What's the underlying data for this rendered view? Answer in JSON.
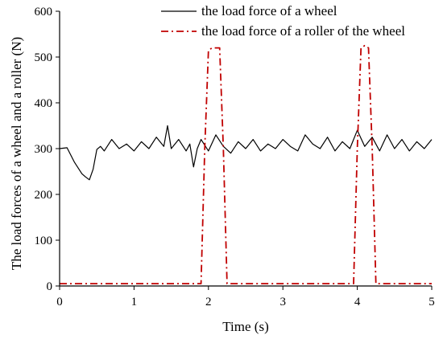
{
  "chart_data": {
    "type": "line",
    "xlabel": "Time (s)",
    "ylabel": "The load forces of a wheel and a roller (N)",
    "xlim": [
      0,
      5
    ],
    "ylim": [
      0,
      600
    ],
    "x_ticks": [
      "0",
      "1",
      "2",
      "3",
      "4",
      "5"
    ],
    "y_ticks": [
      "0",
      "100",
      "200",
      "300",
      "400",
      "500",
      "600"
    ],
    "grid": false,
    "legend_position": "top-right",
    "series": [
      {
        "name": "the load force of a wheel",
        "color": "#000000",
        "line_style": "solid",
        "x": [
          0,
          0.1,
          0.2,
          0.3,
          0.35,
          0.4,
          0.45,
          0.5,
          0.55,
          0.6,
          0.7,
          0.8,
          0.9,
          1.0,
          1.1,
          1.2,
          1.3,
          1.4,
          1.45,
          1.5,
          1.6,
          1.7,
          1.75,
          1.8,
          1.85,
          1.9,
          2.0,
          2.1,
          2.2,
          2.3,
          2.4,
          2.5,
          2.6,
          2.7,
          2.8,
          2.9,
          3.0,
          3.1,
          3.2,
          3.3,
          3.4,
          3.5,
          3.6,
          3.7,
          3.8,
          3.9,
          4.0,
          4.1,
          4.2,
          4.3,
          4.4,
          4.5,
          4.6,
          4.7,
          4.8,
          4.9,
          5.0
        ],
        "y": [
          300,
          302,
          270,
          245,
          238,
          232,
          255,
          298,
          305,
          295,
          320,
          300,
          310,
          295,
          315,
          300,
          325,
          305,
          350,
          300,
          320,
          295,
          310,
          260,
          300,
          320,
          295,
          330,
          305,
          290,
          315,
          300,
          320,
          295,
          310,
          300,
          320,
          305,
          295,
          330,
          310,
          300,
          325,
          295,
          315,
          300,
          340,
          305,
          325,
          295,
          330,
          300,
          320,
          295,
          315,
          300,
          320
        ]
      },
      {
        "name": "the load force of a roller of the wheel",
        "color": "#c00000",
        "line_style": "dash-dot",
        "x": [
          0,
          1.85,
          1.9,
          1.95,
          2.0,
          2.05,
          2.1,
          2.15,
          2.2,
          2.25,
          2.3,
          3.9,
          3.95,
          4.0,
          4.05,
          4.1,
          4.15,
          4.2,
          4.25,
          4.3,
          5.0
        ],
        "y": [
          5,
          5,
          5,
          300,
          515,
          520,
          520,
          520,
          300,
          5,
          5,
          5,
          5,
          300,
          520,
          525,
          520,
          300,
          5,
          5,
          5
        ]
      }
    ]
  }
}
